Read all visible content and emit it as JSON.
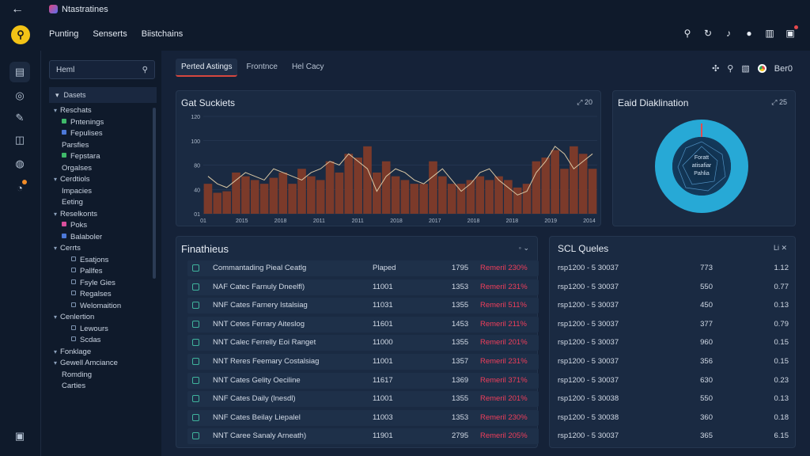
{
  "app": {
    "title": "Ntastratines"
  },
  "nav": [
    "Punting",
    "Senserts",
    "Biistchains"
  ],
  "colors": {
    "bar": "#7b3a2a",
    "line": "#d9c7a4",
    "accent": "#e5484d",
    "donut": "#27a9d6",
    "status": "#ef3e5b"
  },
  "sidebar": {
    "search_placeholder": "Heml",
    "header": "Dasets",
    "items": [
      {
        "label": "Reschats",
        "kind": "group"
      },
      {
        "label": "Pntenings",
        "kind": "item",
        "color": "#3fb96a"
      },
      {
        "label": "Fepulises",
        "kind": "item",
        "color": "#4c78d8"
      },
      {
        "label": "Parsfies",
        "kind": "text"
      },
      {
        "label": "Fepstara",
        "kind": "item",
        "color": "#3fb96a"
      },
      {
        "label": "Orgalses",
        "kind": "text"
      },
      {
        "label": "Cerdtiols",
        "kind": "group"
      },
      {
        "label": "Impacies",
        "kind": "text"
      },
      {
        "label": "Eeting",
        "kind": "text"
      },
      {
        "label": "Reselkonts",
        "kind": "group"
      },
      {
        "label": "Poks",
        "kind": "item",
        "color": "#d94f9c"
      },
      {
        "label": "Balaboler",
        "kind": "item",
        "color": "#4c78d8"
      },
      {
        "label": "Cerrts",
        "kind": "group"
      },
      {
        "label": "Esatjons",
        "kind": "sub"
      },
      {
        "label": "Pallfes",
        "kind": "sub"
      },
      {
        "label": "Fsyle Gies",
        "kind": "sub"
      },
      {
        "label": "Regalses",
        "kind": "sub"
      },
      {
        "label": "Welomaition",
        "kind": "sub"
      },
      {
        "label": "Cenlertion",
        "kind": "group"
      },
      {
        "label": "Lewours",
        "kind": "sub"
      },
      {
        "label": "Scdas",
        "kind": "sub"
      },
      {
        "label": "Fonklage",
        "kind": "group"
      },
      {
        "label": "Gewell Amciance",
        "kind": "group"
      },
      {
        "label": "Romding",
        "kind": "text"
      },
      {
        "label": "Carties",
        "kind": "text"
      }
    ]
  },
  "tabs": [
    "Perted Astings",
    "Frontnce",
    "Hel Cacy"
  ],
  "toolbar": {
    "profile": "Ber0"
  },
  "bar_card": {
    "title": "Gat Suckiets",
    "actions": "⤢  20"
  },
  "chart_data": {
    "type": "bar",
    "ylim": [
      0,
      130
    ],
    "ytick_labels": [
      "01",
      "40",
      "80",
      "100",
      "120"
    ],
    "xtick_labels": [
      "01",
      "2015",
      "2018",
      "2011",
      "2011",
      "2018",
      "2017",
      "2018",
      "2018",
      "2019",
      "2014"
    ],
    "values": [
      40,
      28,
      30,
      55,
      50,
      45,
      40,
      48,
      55,
      40,
      60,
      50,
      45,
      70,
      55,
      80,
      75,
      90,
      55,
      70,
      50,
      45,
      40,
      40,
      70,
      50,
      40,
      40,
      45,
      50,
      45,
      50,
      45,
      35,
      40,
      70,
      75,
      85,
      60,
      90,
      80,
      60
    ],
    "line": [
      50,
      40,
      35,
      45,
      55,
      50,
      45,
      60,
      55,
      50,
      45,
      55,
      60,
      70,
      65,
      80,
      70,
      60,
      30,
      50,
      60,
      55,
      45,
      40,
      50,
      60,
      45,
      30,
      40,
      55,
      60,
      45,
      35,
      25,
      30,
      55,
      70,
      90,
      80,
      60,
      70,
      80
    ]
  },
  "donut_card": {
    "title": "Eaid Diaklination",
    "actions": "⤢  25",
    "center_lines": [
      "Foratt",
      "atisafiar",
      "Pahlia"
    ]
  },
  "table_card": {
    "title": "Finathieus",
    "actions": "◦  ⌄",
    "rows": [
      {
        "name": "Commantading Pieal Ceatlg",
        "col2": "Plaped",
        "col3": "1795",
        "status": "Remeril 230%"
      },
      {
        "name": "NAF Catec Farnuly Dneelfl)",
        "col2": "11001",
        "col3": "1353",
        "status": "Remeril 231%"
      },
      {
        "name": "NNF Cates Farnery Istalsiag",
        "col2": "11031",
        "col3": "1355",
        "status": "Remeril 511%"
      },
      {
        "name": "NNT Cetes Ferrary Aiteslog",
        "col2": "11601",
        "col3": "1453",
        "status": "Remeril 211%"
      },
      {
        "name": "NNT Calec Ferrelly Eoi Ranget",
        "col2": "11000",
        "col3": "1355",
        "status": "Remeril 201%"
      },
      {
        "name": "NNT Reres Feemary Costalsiag",
        "col2": "11001",
        "col3": "1357",
        "status": "Remeril 231%"
      },
      {
        "name": "NNT Cates Gelity Oeciline",
        "col2": "11617",
        "col3": "1369",
        "status": "Remeril 371%"
      },
      {
        "name": "NNF Cates Daily (lnesdl)",
        "col2": "11001",
        "col3": "1355",
        "status": "Remeril 201%"
      },
      {
        "name": "NNF Cates Beilay Liepalel",
        "col2": "11003",
        "col3": "1353",
        "status": "Remeril 230%"
      },
      {
        "name": "NNT Caree Sanaly Arneath)",
        "col2": "11901",
        "col3": "2795",
        "status": "Remeril 205%"
      }
    ]
  },
  "sql_card": {
    "title": "SCL Queles",
    "actions": "Li  ✕",
    "rows": [
      {
        "id": "rsp1200 - 5 30037",
        "v1": "773",
        "v2": "1.12"
      },
      {
        "id": "rsp1200 - 5 30037",
        "v1": "550",
        "v2": "0.77"
      },
      {
        "id": "rsp1200 - 5 30037",
        "v1": "450",
        "v2": "0.13"
      },
      {
        "id": "rsp1200 - 5 30037",
        "v1": "377",
        "v2": "0.79"
      },
      {
        "id": "rsp1200 - 5 30037",
        "v1": "960",
        "v2": "0.15"
      },
      {
        "id": "rsp1200 - 5 30037",
        "v1": "356",
        "v2": "0.15"
      },
      {
        "id": "rsp1200 - 5 30037",
        "v1": "630",
        "v2": "0.23"
      },
      {
        "id": "rsp1200 - 5 30038",
        "v1": "550",
        "v2": "0.13"
      },
      {
        "id": "rsp1200 - 5 30038",
        "v1": "360",
        "v2": "0.18"
      },
      {
        "id": "rsp1200 - 5 30037",
        "v1": "365",
        "v2": "6.15"
      }
    ]
  }
}
